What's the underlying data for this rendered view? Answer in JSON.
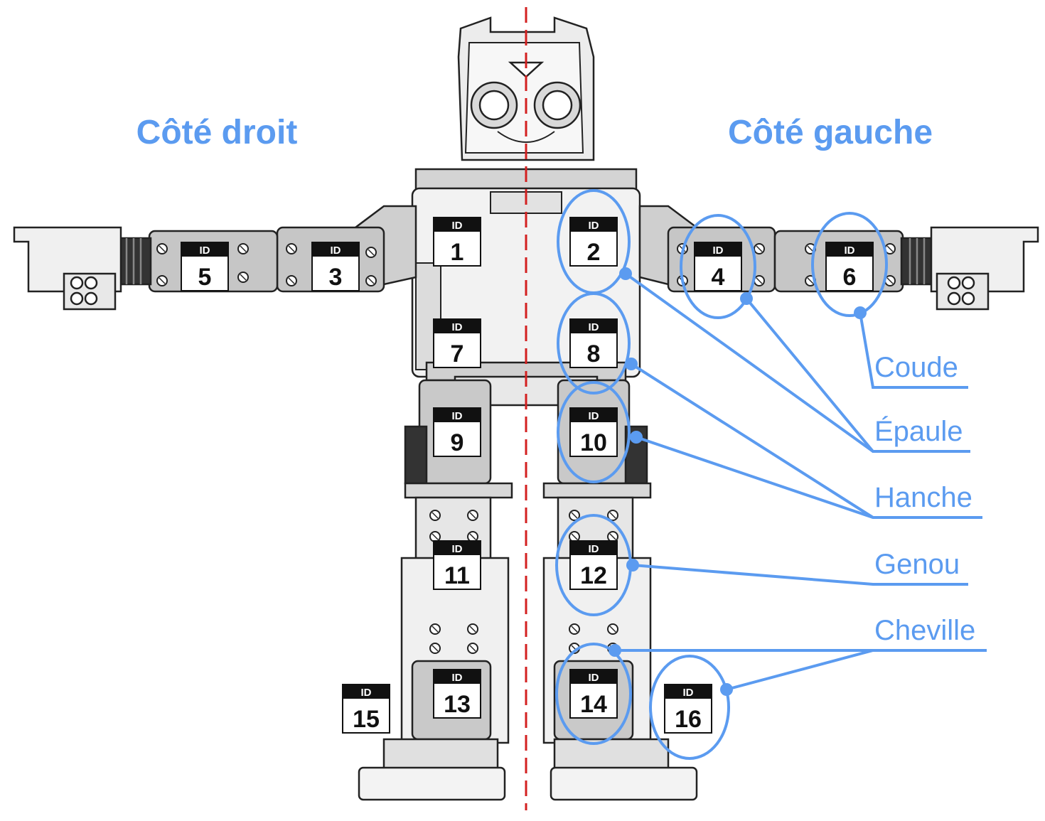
{
  "sides": {
    "right": "Côté droit",
    "left": "Côté gauche"
  },
  "id_label": "ID",
  "servos": [
    "1",
    "2",
    "3",
    "4",
    "5",
    "6",
    "7",
    "8",
    "9",
    "10",
    "11",
    "12",
    "13",
    "14",
    "15",
    "16"
  ],
  "joints": {
    "elbow": "Coude",
    "shoulder": "Épaule",
    "hip": "Hanche",
    "knee": "Genou",
    "ankle": "Cheville"
  },
  "colors": {
    "accent": "#5b9bf0",
    "centerline": "#d32020",
    "body_outline": "#222222",
    "body_fill": "#f2f2f2",
    "servo_fill": "#bdbdbd"
  }
}
